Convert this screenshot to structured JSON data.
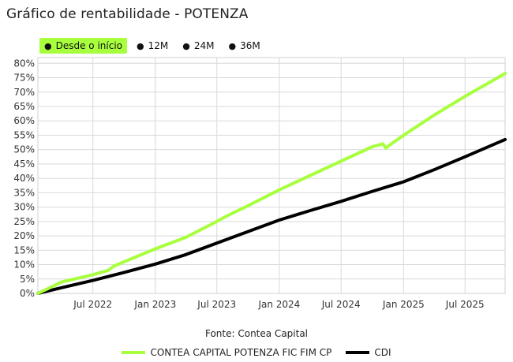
{
  "header": {
    "title": "Gráfico de rentabilidade - POTENZA"
  },
  "periods": [
    {
      "label": "Desde o início",
      "active": true
    },
    {
      "label": "12M",
      "active": false
    },
    {
      "label": "24M",
      "active": false
    },
    {
      "label": "36M",
      "active": false
    }
  ],
  "footer": {
    "source": "Fonte: Contea Capital"
  },
  "colors": {
    "fund": "#a8ff3e",
    "cdi": "#000000",
    "active_period": "#a8ff3e"
  },
  "chart_data": {
    "type": "line",
    "title": "",
    "xlabel": "",
    "ylabel": "",
    "x_range": [
      "2022-01-20",
      "2025-10-27"
    ],
    "ylim": [
      0,
      82
    ],
    "yticks": [
      0,
      5,
      10,
      15,
      20,
      25,
      30,
      35,
      40,
      45,
      50,
      55,
      60,
      65,
      70,
      75,
      80
    ],
    "ytick_labels": [
      "0%",
      "5%",
      "10%",
      "15%",
      "20%",
      "25%",
      "30%",
      "35%",
      "40%",
      "45%",
      "50%",
      "55%",
      "60%",
      "65%",
      "70%",
      "75%",
      "80%"
    ],
    "xticks": [
      "2022-07-01",
      "2023-01-01",
      "2023-07-01",
      "2024-01-01",
      "2024-07-01",
      "2025-01-01",
      "2025-07-01"
    ],
    "xtick_labels": [
      "Jul 2022",
      "Jan 2023",
      "Jul 2023",
      "Jan 2024",
      "Jul 2024",
      "Jan 2025",
      "Jul 2025"
    ],
    "grid": true,
    "legend_position": "bottom",
    "series": [
      {
        "name": "CONTEA CAPITAL POTENZA FIC FIM CP",
        "color": "#a8ff3e",
        "points": [
          [
            "2022-01-20",
            0.0
          ],
          [
            "2022-04-01",
            4.0
          ],
          [
            "2022-07-01",
            6.5
          ],
          [
            "2022-08-15",
            8.0
          ],
          [
            "2022-09-01",
            9.5
          ],
          [
            "2022-10-01",
            11.0
          ],
          [
            "2023-01-01",
            15.5
          ],
          [
            "2023-04-01",
            19.5
          ],
          [
            "2023-07-01",
            25.0
          ],
          [
            "2023-08-01",
            27.0
          ],
          [
            "2023-10-01",
            30.5
          ],
          [
            "2024-01-01",
            36.0
          ],
          [
            "2024-04-01",
            41.0
          ],
          [
            "2024-07-01",
            46.0
          ],
          [
            "2024-10-01",
            51.0
          ],
          [
            "2024-11-01",
            52.0
          ],
          [
            "2024-11-10",
            50.5
          ],
          [
            "2024-11-20",
            51.5
          ],
          [
            "2025-01-01",
            55.0
          ],
          [
            "2025-04-01",
            62.0
          ],
          [
            "2025-07-01",
            68.5
          ],
          [
            "2025-10-27",
            76.5
          ]
        ]
      },
      {
        "name": "CDI",
        "color": "#000000",
        "points": [
          [
            "2022-01-20",
            0.0
          ],
          [
            "2022-04-01",
            2.0
          ],
          [
            "2022-07-01",
            4.5
          ],
          [
            "2022-10-01",
            7.3
          ],
          [
            "2023-01-01",
            10.2
          ],
          [
            "2023-04-01",
            13.5
          ],
          [
            "2023-07-01",
            17.5
          ],
          [
            "2023-10-01",
            21.5
          ],
          [
            "2024-01-01",
            25.5
          ],
          [
            "2024-04-01",
            28.8
          ],
          [
            "2024-07-01",
            32.0
          ],
          [
            "2024-10-01",
            35.5
          ],
          [
            "2025-01-01",
            38.8
          ],
          [
            "2025-04-01",
            43.0
          ],
          [
            "2025-07-01",
            47.5
          ],
          [
            "2025-10-27",
            53.5
          ]
        ]
      }
    ]
  }
}
